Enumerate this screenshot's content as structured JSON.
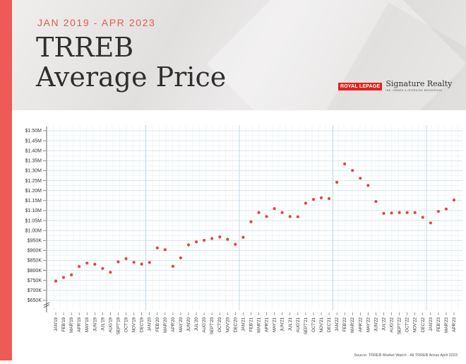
{
  "header": {
    "date_range": "JAN 2019 - APR 2023",
    "title_line1": "TRREB",
    "title_line2": "Average Price"
  },
  "brand": {
    "logo_text": "ROYAL LEPAGE",
    "name": "Signature Realty",
    "tagline": "IND. OWNED & OPERATED BROKERAGE"
  },
  "source": "Source: TRREB Market Watch - All TRREB Areas April 2023",
  "colors": {
    "accent": "#ee5a55",
    "point": "#e2473f",
    "grid": "#cfe3ec"
  },
  "chart_data": {
    "type": "scatter",
    "title": "TRREB Average Price",
    "subtitle": "JAN 2019 - APR 2023",
    "xlabel": "",
    "ylabel": "",
    "ylim": [
      650000,
      1500000
    ],
    "y_ticks": [
      "$650K",
      "$700K",
      "$750K",
      "$800K",
      "$850K",
      "$900K",
      "$950K",
      "$1.00M",
      "$1.05M",
      "$1.10M",
      "$1.15M",
      "$1.20M",
      "$1.25M",
      "$1.30M",
      "$1.35M",
      "$1.40M",
      "$1.45M",
      "$1.50M"
    ],
    "y_tick_values": [
      650000,
      700000,
      750000,
      800000,
      850000,
      900000,
      950000,
      1000000,
      1050000,
      1100000,
      1150000,
      1200000,
      1250000,
      1300000,
      1350000,
      1400000,
      1450000,
      1500000
    ],
    "y_axis_break": true,
    "grid": true,
    "categories": [
      "JAN'19",
      "FEB'19",
      "MAR'19",
      "APR'19",
      "MAY'19",
      "JUN'19",
      "JUL'19",
      "AUG'19",
      "SEPT'19",
      "OCT'19",
      "NOV'19",
      "DEC'19",
      "JAN'20",
      "FEB'20",
      "MAR'20",
      "APR'20",
      "MAY'20",
      "JUN'20",
      "JUL'20",
      "AUG'20",
      "SEPT'20",
      "OCT'20",
      "NOV'20",
      "DEC'20",
      "JAN'21",
      "FEB'21",
      "MAR'21",
      "APR'21",
      "MAY'21",
      "JUN'21",
      "JUL'21",
      "AUG'21",
      "SEPT'21",
      "OCT'21",
      "NOV'21",
      "DEC'21",
      "JAN'22",
      "FEB'22",
      "MAR'22",
      "APR'22",
      "MAY'22",
      "JUN'22",
      "JUL'22",
      "AUG'22",
      "SEPT'22",
      "OCT'22",
      "NOV'22",
      "DEC'22",
      "JAN'23",
      "FEB'23",
      "MAR'23",
      "APR'23"
    ],
    "values": [
      747000,
      765000,
      778000,
      820000,
      837000,
      831000,
      810000,
      791000,
      843000,
      859000,
      841000,
      832000,
      840000,
      913000,
      904000,
      821000,
      863000,
      928000,
      943000,
      951000,
      960000,
      968000,
      956000,
      931000,
      966000,
      1044000,
      1090000,
      1070000,
      1110000,
      1090000,
      1070000,
      1069000,
      1137000,
      1156000,
      1164000,
      1160000,
      1242000,
      1334000,
      1301000,
      1262000,
      1226000,
      1146000,
      1086000,
      1088000,
      1090000,
      1090000,
      1090000,
      1066000,
      1038000,
      1096000,
      1108000,
      1153000
    ],
    "year_boundaries": [
      "JAN'20",
      "JAN'21",
      "JAN'22",
      "JAN'23"
    ]
  }
}
